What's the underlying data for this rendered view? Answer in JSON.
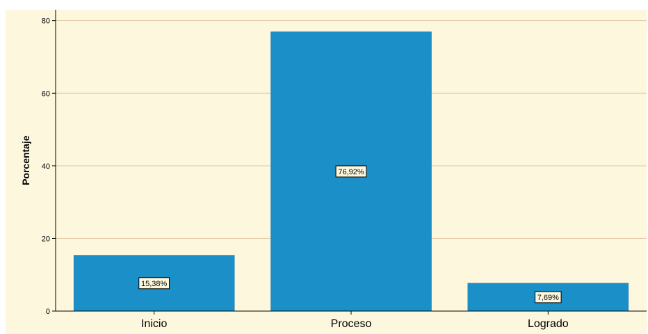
{
  "chart_data": {
    "type": "bar",
    "title": "",
    "xlabel": "",
    "ylabel": "Porcentaje",
    "categories": [
      "Inicio",
      "Proceso",
      "Logrado"
    ],
    "values": [
      15.38,
      76.92,
      7.69
    ],
    "data_labels": [
      "15,38%",
      "76,92%",
      "7,69%"
    ],
    "ylim": [
      0,
      83
    ],
    "yticks": [
      0,
      20,
      40,
      60,
      80
    ],
    "ytick_labels": [
      "0",
      "20",
      "40",
      "60",
      "80"
    ],
    "grid": true,
    "legend": "none",
    "colors": {
      "bar": "#1a8fc8",
      "bar_edge": "#1a6f9f",
      "plot_background": "#fdf8dd",
      "gridline": "#e2c9a6",
      "axis": "#000000",
      "label_box_fill": "#fdf8dd",
      "label_box_edge": "#000000"
    }
  }
}
